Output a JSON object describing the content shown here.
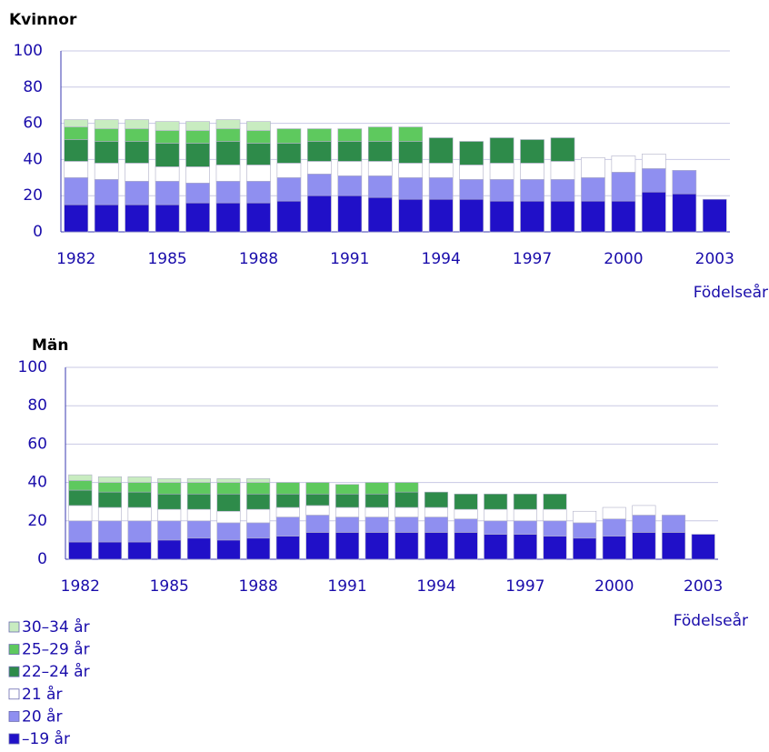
{
  "chart_data": [
    {
      "type": "bar",
      "stacked": true,
      "title": "Kvinnor",
      "x_label": "Födelseår",
      "categories": [
        1982,
        null,
        null,
        1985,
        null,
        null,
        1988,
        null,
        null,
        1991,
        null,
        null,
        1994,
        null,
        null,
        1997,
        null,
        null,
        2000,
        null,
        null,
        2003
      ],
      "series": [
        {
          "color": "#2010c8",
          "values": [
            15,
            15,
            15,
            15,
            16,
            16,
            16,
            17,
            20,
            20,
            19,
            18,
            18,
            18,
            17,
            17,
            17,
            17,
            17,
            22,
            21,
            18
          ]
        },
        {
          "color": "#8f8ff0",
          "values": [
            15,
            14,
            13,
            13,
            11,
            12,
            12,
            13,
            12,
            11,
            12,
            12,
            12,
            11,
            12,
            12,
            12,
            13,
            16,
            13,
            13,
            null
          ]
        },
        {
          "color": "#ffffff",
          "values": [
            9,
            9,
            10,
            8,
            9,
            9,
            9,
            8,
            7,
            8,
            8,
            8,
            8,
            8,
            9,
            9,
            10,
            11,
            9,
            8,
            null,
            null
          ]
        },
        {
          "color": "#2e8b4a",
          "values": [
            12,
            12,
            12,
            13,
            13,
            13,
            12,
            11,
            11,
            11,
            11,
            12,
            14,
            13,
            14,
            13,
            13,
            null,
            null,
            null,
            null,
            null
          ]
        },
        {
          "color": "#5ec95e",
          "values": [
            7,
            7,
            7,
            7,
            7,
            7,
            7,
            8,
            7,
            7,
            8,
            8,
            null,
            null,
            null,
            null,
            null,
            null,
            null,
            null,
            null,
            null
          ]
        },
        {
          "color": "#c8ecc0",
          "values": [
            4,
            5,
            5,
            5,
            5,
            5,
            5,
            null,
            null,
            null,
            null,
            null,
            null,
            null,
            null,
            null,
            null,
            null,
            null,
            null,
            null,
            null
          ]
        }
      ],
      "ylim": [
        0,
        100
      ],
      "yticks": [
        0,
        20,
        40,
        60,
        80,
        100
      ],
      "grid": true
    },
    {
      "type": "bar",
      "stacked": true,
      "title": "Män",
      "x_label": "Födelseår",
      "categories": [
        1982,
        null,
        null,
        1985,
        null,
        null,
        1988,
        null,
        null,
        1991,
        null,
        null,
        1994,
        null,
        null,
        1997,
        null,
        null,
        2000,
        null,
        null,
        2003
      ],
      "series": [
        {
          "name": "–19 år",
          "color": "#2010c8",
          "values": [
            9,
            9,
            9,
            10,
            11,
            10,
            11,
            12,
            14,
            14,
            14,
            14,
            14,
            14,
            13,
            13,
            12,
            11,
            12,
            14,
            14,
            13
          ]
        },
        {
          "name": "20 år",
          "color": "#8f8ff0",
          "values": [
            11,
            11,
            11,
            10,
            9,
            9,
            8,
            10,
            9,
            8,
            8,
            8,
            8,
            7,
            7,
            7,
            8,
            8,
            9,
            9,
            9,
            null
          ]
        },
        {
          "name": "21 år",
          "color": "#ffffff",
          "values": [
            8,
            7,
            7,
            6,
            6,
            6,
            7,
            5,
            5,
            5,
            5,
            5,
            5,
            5,
            6,
            6,
            6,
            6,
            6,
            5,
            null,
            null
          ]
        },
        {
          "name": "22–24 år",
          "color": "#2e8b4a",
          "values": [
            8,
            8,
            8,
            8,
            8,
            9,
            8,
            7,
            6,
            7,
            7,
            8,
            8,
            8,
            8,
            8,
            8,
            null,
            null,
            null,
            null,
            null
          ]
        },
        {
          "name": "25–29 år",
          "color": "#5ec95e",
          "values": [
            5,
            5,
            5,
            6,
            6,
            6,
            6,
            6,
            6,
            5,
            6,
            5,
            null,
            null,
            null,
            null,
            null,
            null,
            null,
            null,
            null,
            null
          ]
        },
        {
          "name": "30–34 år",
          "color": "#c8ecc0",
          "values": [
            3,
            3,
            3,
            2,
            2,
            2,
            2,
            null,
            null,
            null,
            null,
            null,
            null,
            null,
            null,
            null,
            null,
            null,
            null,
            null,
            null,
            null
          ]
        }
      ],
      "ylim": [
        0,
        100
      ],
      "yticks": [
        0,
        20,
        40,
        60,
        80,
        100
      ],
      "grid": true
    }
  ]
}
